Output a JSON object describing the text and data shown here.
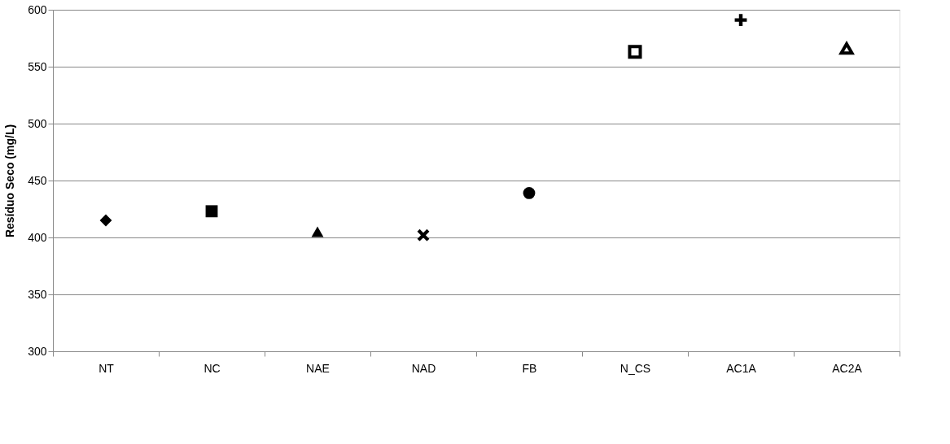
{
  "chart_data": {
    "type": "scatter",
    "ylabel": "Resíduo Seco (mg/L)",
    "categories": [
      "NT",
      "NC",
      "NAE",
      "NAD",
      "FB",
      "N_CS",
      "AC1A",
      "AC2A"
    ],
    "series": [
      {
        "x": [
          "NT"
        ],
        "values": [
          415
        ],
        "color": "#000000",
        "marker": "diamond"
      },
      {
        "x": [
          "NC"
        ],
        "values": [
          423
        ],
        "color": "#000000",
        "marker": "square"
      },
      {
        "x": [
          "NAE"
        ],
        "values": [
          405
        ],
        "color": "#000000",
        "marker": "triangle"
      },
      {
        "x": [
          "NAD"
        ],
        "values": [
          402
        ],
        "color": "#000000",
        "marker": "cross"
      },
      {
        "x": [
          "FB"
        ],
        "values": [
          439
        ],
        "color": "#000000",
        "marker": "circle"
      },
      {
        "x": [
          "N_CS"
        ],
        "values": [
          563
        ],
        "color": "#000000",
        "marker": "square-open"
      },
      {
        "x": [
          "AC1A"
        ],
        "values": [
          591
        ],
        "color": "#000000",
        "marker": "plus"
      },
      {
        "x": [
          "AC2A"
        ],
        "values": [
          566
        ],
        "color": "#000000",
        "marker": "triangle-open"
      }
    ],
    "ylim": [
      300,
      600
    ],
    "yticks": [
      300,
      350,
      400,
      450,
      500,
      550,
      600
    ],
    "grid": "y"
  }
}
